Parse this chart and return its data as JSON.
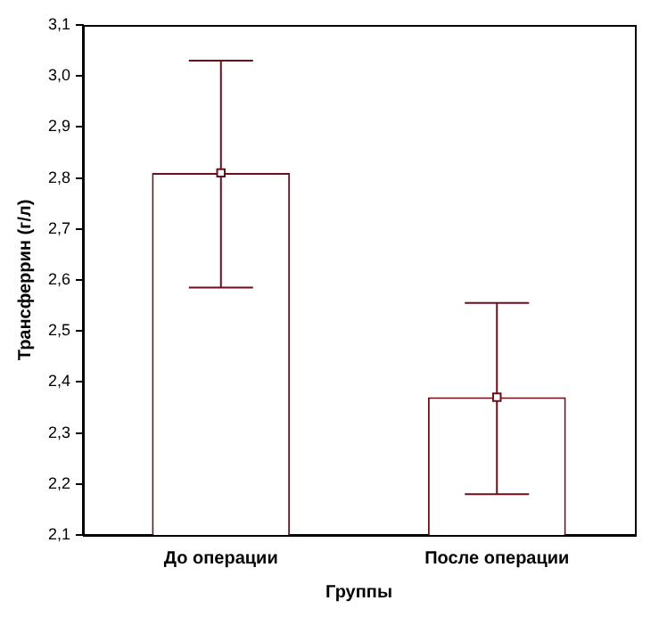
{
  "chart_data": {
    "type": "bar",
    "xlabel": "Группы",
    "ylabel": "Трансферрин (г/л)",
    "categories": [
      "До операции",
      "После операции"
    ],
    "series": [
      {
        "color": "#6b0f1a",
        "values": [
          2.81,
          2.37
        ],
        "errors": [
          [
            2.585,
            3.03
          ],
          [
            2.18,
            2.555
          ]
        ]
      },
      {
        "type": "scatter",
        "color": "#6b0f1a",
        "x": [
          "До операции",
          "После операции"
        ],
        "values": [
          2.81,
          2.37
        ]
      }
    ],
    "ylim": [
      2.1,
      3.1
    ],
    "yticks": [
      {
        "value": 2.1,
        "label": "2,1"
      },
      {
        "value": 2.2,
        "label": "2,2"
      },
      {
        "value": 2.3,
        "label": "2,3"
      },
      {
        "value": 2.4,
        "label": "2,4"
      },
      {
        "value": 2.5,
        "label": "2,5"
      },
      {
        "value": 2.6,
        "label": "2,6"
      },
      {
        "value": 2.7,
        "label": "2,7"
      },
      {
        "value": 2.8,
        "label": "2,8"
      },
      {
        "value": 2.9,
        "label": "2,9"
      },
      {
        "value": 3.0,
        "label": "3,0"
      },
      {
        "value": 3.1,
        "label": "3,1"
      }
    ],
    "marker": "square",
    "grid": false,
    "legend": false
  }
}
